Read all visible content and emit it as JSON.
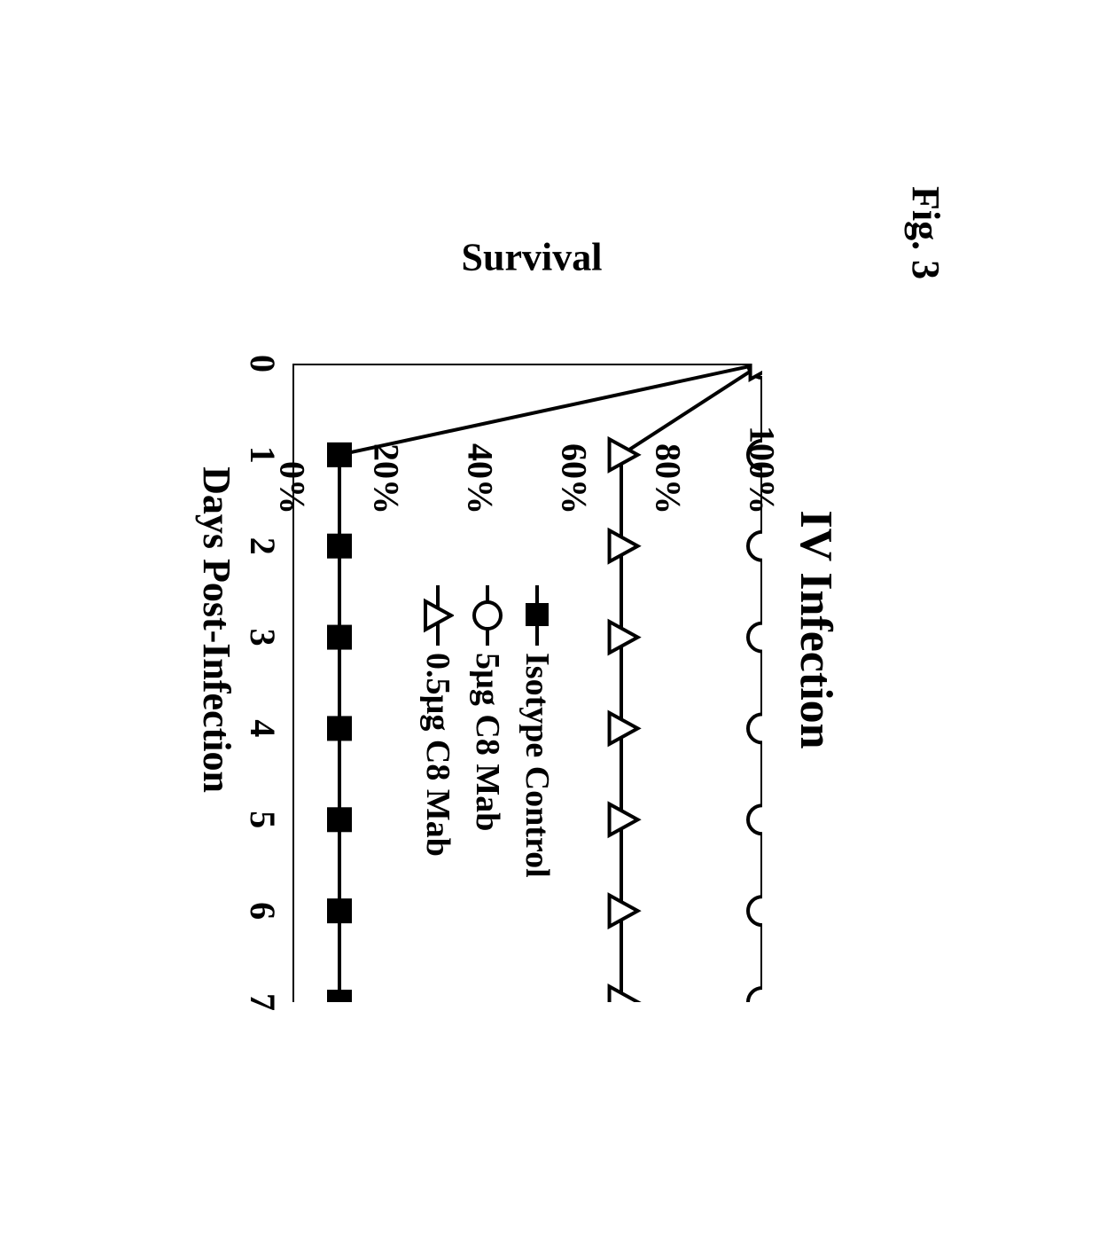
{
  "figure_label": "Fig. 3",
  "chart": {
    "type": "line",
    "title": "IV Infection",
    "xlabel": "Days Post-Infection",
    "ylabel": "Survival",
    "xlim": [
      0,
      7
    ],
    "ylim": [
      0,
      100
    ],
    "xtick_values": [
      0,
      1,
      2,
      3,
      4,
      5,
      6,
      7
    ],
    "xtick_labels": [
      "0",
      "1",
      "2",
      "3",
      "4",
      "5",
      "6",
      "7"
    ],
    "ytick_values": [
      0,
      20,
      40,
      60,
      80,
      100
    ],
    "ytick_labels": [
      "0%",
      "20%",
      "40%",
      "60%",
      "80%",
      "100%"
    ],
    "background_color": "#ffffff",
    "axis_color": "#000000",
    "axis_width": 4,
    "tick_length_major": 14,
    "tick_fontsize": 40,
    "label_fontsize": 44,
    "title_fontsize": 52,
    "font_family": "Times New Roman",
    "font_weight": "bold",
    "series": [
      {
        "name": "Isotype Control",
        "marker": "filled-square",
        "marker_size": 28,
        "marker_fill": "#000000",
        "marker_stroke": "#000000",
        "line_color": "#000000",
        "line_width": 4,
        "x": [
          0,
          1,
          2,
          3,
          4,
          5,
          6,
          7
        ],
        "y": [
          100,
          10,
          10,
          10,
          10,
          10,
          10,
          10
        ]
      },
      {
        "name": "5µg C8 Mab",
        "marker": "open-circle",
        "marker_size": 32,
        "marker_fill": "#ffffff",
        "marker_stroke": "#000000",
        "marker_stroke_width": 4,
        "line_color": "#000000",
        "line_width": 4,
        "x": [
          0,
          1,
          2,
          3,
          4,
          5,
          6,
          7
        ],
        "y": [
          100,
          100,
          100,
          100,
          100,
          100,
          100,
          100
        ]
      },
      {
        "name": "0.5µg C8 Mab",
        "marker": "open-triangle",
        "marker_size": 32,
        "marker_fill": "#ffffff",
        "marker_stroke": "#000000",
        "marker_stroke_width": 4,
        "line_color": "#000000",
        "line_width": 4,
        "x": [
          0,
          1,
          2,
          3,
          4,
          5,
          6,
          7
        ],
        "y": [
          100,
          70,
          70,
          70,
          70,
          70,
          70,
          70
        ]
      }
    ],
    "legend": {
      "position": "inside-center",
      "items": [
        {
          "marker": "filled-square",
          "label": "Isotype Control"
        },
        {
          "marker": "open-circle",
          "label": "5µg C8 Mab"
        },
        {
          "marker": "open-triangle",
          "label": "0.5µg C8 Mab"
        }
      ]
    }
  }
}
